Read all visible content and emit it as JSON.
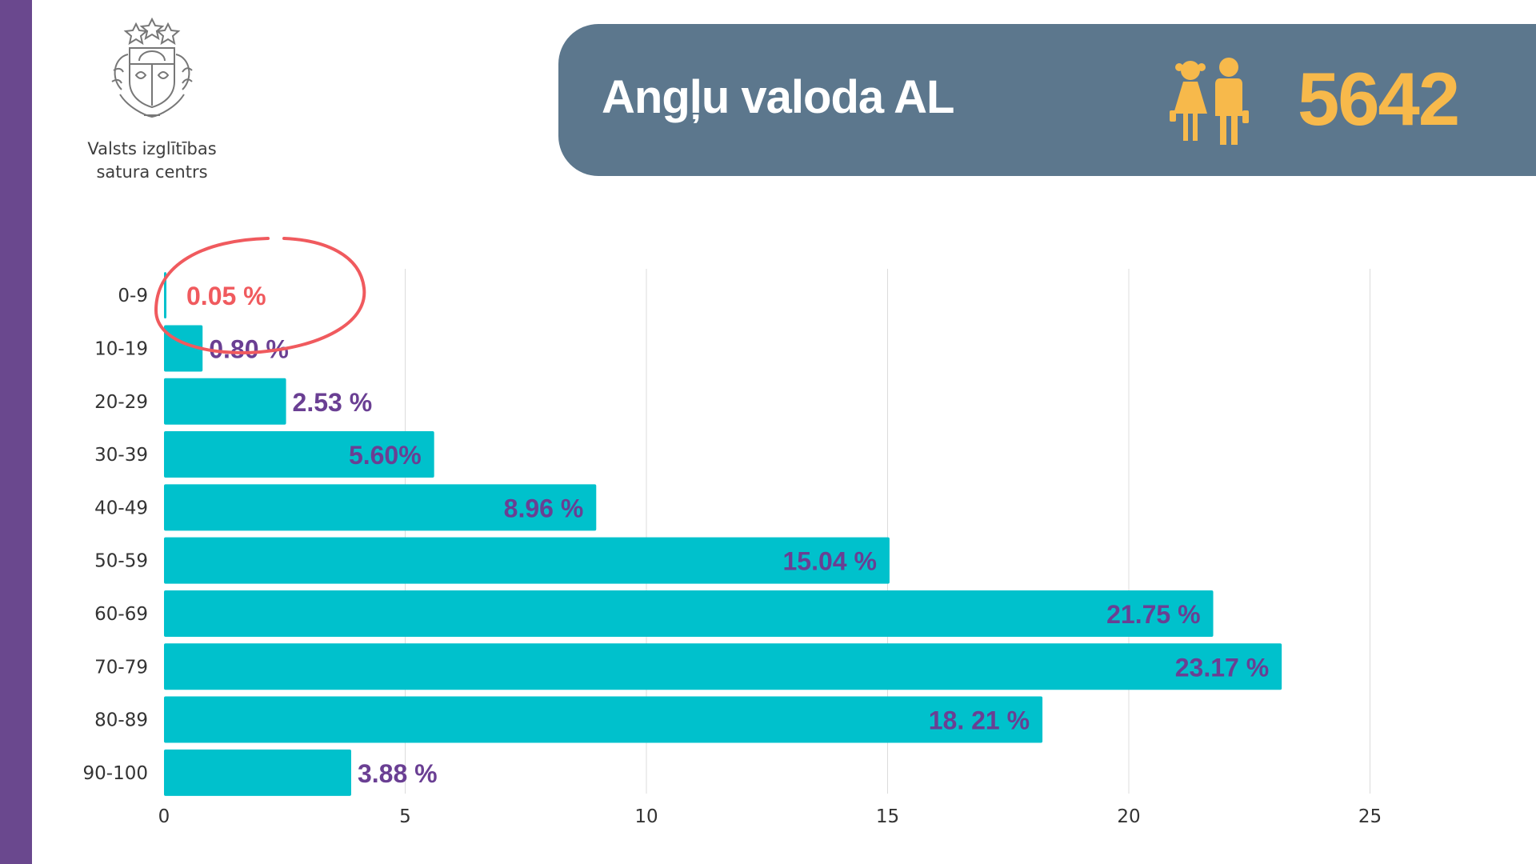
{
  "logo": {
    "org_name": "Valsts izglītības\nsatura centrs",
    "emblem_icon": "latvia-coat-of-arms-icon"
  },
  "banner": {
    "title": "Angļu valoda AL",
    "count": "5642",
    "icon": "students-icon"
  },
  "colors": {
    "bar": "#00c1cc",
    "label": "#6a3f93",
    "highlight": "#f05a5e",
    "banner_bg": "#5c778d",
    "count": "#f7b94b",
    "stripe": "#6a488e"
  },
  "chart_data": {
    "type": "bar",
    "orientation": "horizontal",
    "categories": [
      "0-9",
      "10-19",
      "20-29",
      "30-39",
      "40-49",
      "50-59",
      "60-69",
      "70-79",
      "80-89",
      "90-100"
    ],
    "values": [
      0.05,
      0.8,
      2.53,
      5.6,
      8.96,
      15.04,
      21.75,
      23.17,
      18.21,
      3.88
    ],
    "value_labels": [
      "0.05 %",
      "0.80 %",
      "2.53 %",
      "5.60%",
      "8.96 %",
      "15.04 %",
      "21.75 %",
      "23.17 %",
      "18. 21 %",
      "3.88 %"
    ],
    "label_position": [
      "outside",
      "outside",
      "outside",
      "inside",
      "inside",
      "inside",
      "inside",
      "inside",
      "inside",
      "outside"
    ],
    "highlighted": [
      0
    ],
    "xticks": [
      0,
      5,
      10,
      15,
      20,
      25
    ],
    "xlim": [
      0,
      27.5
    ],
    "grid": "vertical",
    "title": "",
    "xlabel": "",
    "ylabel": ""
  }
}
